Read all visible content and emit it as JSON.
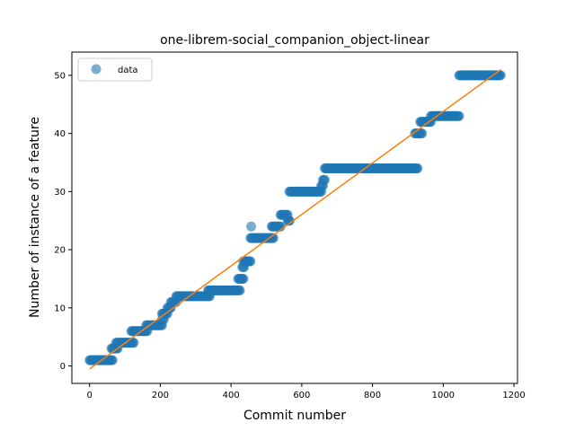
{
  "chart_data": {
    "type": "scatter",
    "title": "one-librem-social_companion_object-linear",
    "xlabel": "Commit number",
    "ylabel": "Number of instance of a feature",
    "xlim": [
      -50,
      1210
    ],
    "ylim": [
      -3,
      54
    ],
    "xticks": [
      0,
      200,
      400,
      600,
      800,
      1000,
      1200
    ],
    "yticks": [
      0,
      10,
      20,
      30,
      40,
      50
    ],
    "grid": false,
    "legend": {
      "placement": "top-left",
      "entries": [
        "data"
      ]
    },
    "colors": {
      "data": "#1f77b4",
      "fit": "#ff7f0e"
    },
    "series": [
      {
        "name": "data",
        "kind": "scatter",
        "segments": [
          {
            "x_start": 0,
            "x_end": 65,
            "y": 1
          },
          {
            "x_start": 62,
            "x_end": 80,
            "y": 3
          },
          {
            "x_start": 75,
            "x_end": 125,
            "y": 4
          },
          {
            "x_start": 118,
            "x_end": 165,
            "y": 6
          },
          {
            "x_start": 160,
            "x_end": 205,
            "y": 7
          },
          {
            "x_start": 205,
            "x_end": 210,
            "y": 8
          },
          {
            "x_start": 205,
            "x_end": 222,
            "y": 9
          },
          {
            "x_start": 220,
            "x_end": 232,
            "y": 10
          },
          {
            "x_start": 230,
            "x_end": 245,
            "y": 11
          },
          {
            "x_start": 245,
            "x_end": 340,
            "y": 12
          },
          {
            "x_start": 335,
            "x_end": 425,
            "y": 13
          },
          {
            "x_start": 420,
            "x_end": 435,
            "y": 15
          },
          {
            "x_start": 432,
            "x_end": 437,
            "y": 17
          },
          {
            "x_start": 435,
            "x_end": 455,
            "y": 18
          },
          {
            "x_start": 455,
            "x_end": 520,
            "y": 22
          },
          {
            "x_start": 515,
            "x_end": 540,
            "y": 24
          },
          {
            "x_start": 540,
            "x_end": 560,
            "y": 26
          },
          {
            "x_start": 560,
            "x_end": 565,
            "y": 25
          },
          {
            "x_start": 565,
            "x_end": 655,
            "y": 30
          },
          {
            "x_start": 655,
            "x_end": 660,
            "y": 31
          },
          {
            "x_start": 660,
            "x_end": 665,
            "y": 32
          },
          {
            "x_start": 665,
            "x_end": 928,
            "y": 34
          },
          {
            "x_start": 920,
            "x_end": 940,
            "y": 40
          },
          {
            "x_start": 935,
            "x_end": 965,
            "y": 42
          },
          {
            "x_start": 965,
            "x_end": 1045,
            "y": 43
          },
          {
            "x_start": 1045,
            "x_end": 1163,
            "y": 50
          }
        ],
        "points": [
          {
            "x": 457,
            "y": 24
          },
          {
            "x": 565,
            "y": 25
          }
        ]
      },
      {
        "name": "",
        "kind": "line",
        "x": [
          0,
          1163
        ],
        "y": [
          -0.5,
          51
        ]
      }
    ]
  }
}
